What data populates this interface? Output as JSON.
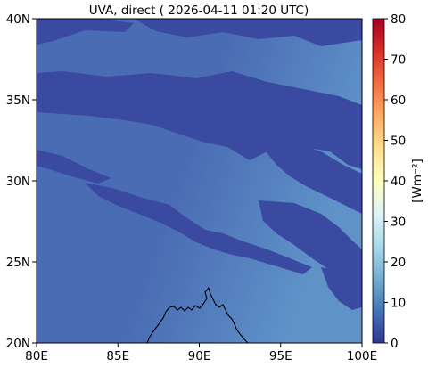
{
  "title": "UVA, direct ( 2026-04-11 01:20 UTC)",
  "map": {
    "x_ticks": [
      "80E",
      "85E",
      "90E",
      "95E",
      "100E"
    ],
    "x_values": [
      80,
      85,
      90,
      95,
      100
    ],
    "y_ticks": [
      "20N",
      "25N",
      "30N",
      "35N",
      "40N"
    ],
    "y_values": [
      20,
      25,
      30,
      35,
      40
    ],
    "lon_range": [
      80,
      100
    ],
    "lat_range": [
      20,
      40
    ],
    "field_colors": {
      "low": "#3a4aa0",
      "mid": "#4a6cb4",
      "high": "#5f93c8"
    },
    "coastline_color": "#000000"
  },
  "colorbar": {
    "label": "[Wm⁻²]",
    "ticks": [
      "0",
      "10",
      "20",
      "30",
      "40",
      "50",
      "60",
      "70",
      "80"
    ],
    "tick_values": [
      0,
      10,
      20,
      30,
      40,
      50,
      60,
      70,
      80
    ],
    "range": [
      0,
      80
    ],
    "colormap": "RdYlBu_r"
  }
}
